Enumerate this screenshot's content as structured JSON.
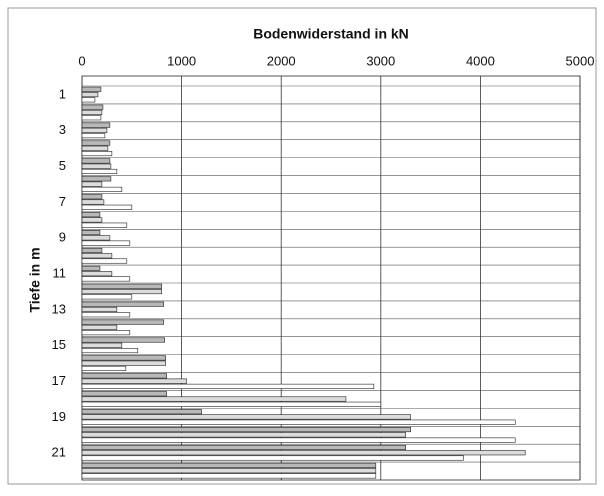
{
  "chart_data": {
    "type": "hbar",
    "title": "Bodenwiderstand in kN",
    "y_label": "Tiefe in m",
    "categories": [
      "1",
      null,
      "3",
      null,
      "5",
      null,
      "7",
      null,
      "9",
      null,
      "11",
      null,
      "13",
      null,
      "15",
      null,
      "17",
      null,
      "19",
      null,
      "21",
      null
    ],
    "series": [
      {
        "color": "#b8b8b8",
        "values": [
          190,
          210,
          280,
          280,
          280,
          290,
          200,
          180,
          180,
          200,
          180,
          800,
          820,
          820,
          830,
          840,
          850,
          850,
          1200,
          3300,
          3250,
          2950
        ]
      },
      {
        "color": "#dcdcdc",
        "values": [
          160,
          200,
          250,
          260,
          290,
          200,
          220,
          200,
          280,
          300,
          300,
          800,
          350,
          350,
          400,
          840,
          1050,
          2650,
          3300,
          3250,
          4450,
          2950
        ]
      },
      {
        "color": "#ffffff",
        "values": [
          130,
          190,
          230,
          300,
          350,
          400,
          500,
          450,
          480,
          450,
          480,
          500,
          480,
          480,
          560,
          440,
          2930,
          3000,
          4350,
          4350,
          3830,
          2950
        ]
      }
    ],
    "xlim": [
      0,
      5000
    ],
    "xticks": [
      0,
      1000,
      2000,
      3000,
      4000,
      5000
    ],
    "grid": true
  }
}
